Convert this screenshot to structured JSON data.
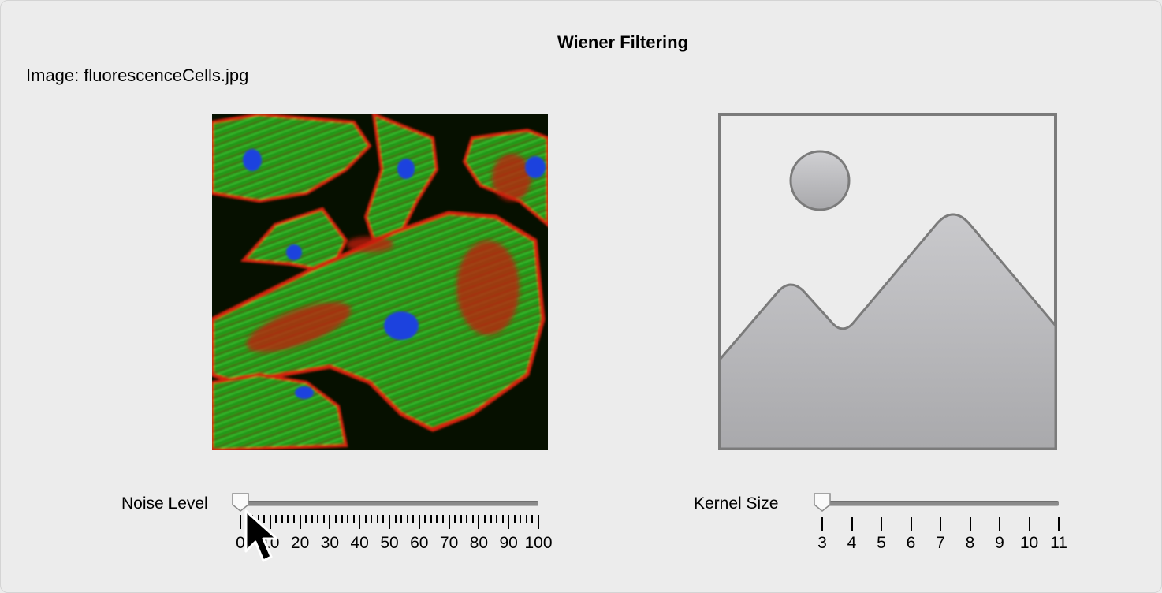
{
  "window": {
    "title": "Wiener Filtering",
    "image_label_prefix": "Image:",
    "image_filename": "fluorescenceCells.jpg"
  },
  "left_axes": {
    "content": "fluorescence cells micrograph"
  },
  "right_axes": {
    "content": "image placeholder",
    "icon": "image-placeholder-icon"
  },
  "noise_slider": {
    "label": "Noise Level",
    "min": 0,
    "max": 100,
    "value": 0,
    "major_ticks": [
      "0",
      "10",
      "20",
      "30",
      "40",
      "50",
      "60",
      "70",
      "80",
      "90",
      "100"
    ],
    "minor_tick_count": 51
  },
  "kernel_slider": {
    "label": "Kernel Size",
    "min": 3,
    "max": 11,
    "value": 3,
    "ticks": [
      "3",
      "4",
      "5",
      "6",
      "7",
      "8",
      "9",
      "10",
      "11"
    ]
  },
  "colors": {
    "background": "#ececec",
    "track": "#8a8a8a",
    "cell_green": "#2fc41e",
    "cell_red": "#d6200f",
    "nucleus_blue": "#1f45d8"
  }
}
